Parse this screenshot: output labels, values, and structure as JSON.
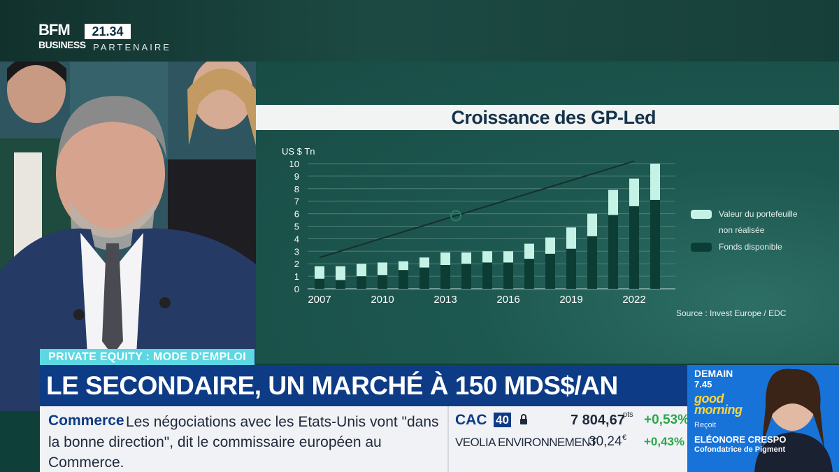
{
  "channel": {
    "logo_top": "BFM",
    "logo_bottom": "BUSINESS",
    "clock": "21.34",
    "partner": "PARTENAIRE"
  },
  "chart_data": {
    "type": "bar",
    "stacked": true,
    "title": "Croissance des GP-Led",
    "unit_label": "US $ Tn",
    "source": "Source : Invest Europe / EDC",
    "ylim": [
      0,
      10
    ],
    "y_ticks": [
      "0",
      "1",
      "2",
      "3",
      "4",
      "5",
      "6",
      "7",
      "8",
      "9",
      "10"
    ],
    "x_tick_labels": [
      "2007",
      "2010",
      "2013",
      "2016",
      "2019",
      "2022"
    ],
    "x": [
      2007,
      2008,
      2009,
      2010,
      2011,
      2012,
      2013,
      2014,
      2015,
      2016,
      2017,
      2018,
      2019,
      2020,
      2021,
      2022,
      2023
    ],
    "series": [
      {
        "name": "Fonds disponible",
        "color": "#0c3d34",
        "values": [
          0.8,
          0.7,
          1.0,
          1.1,
          1.5,
          1.7,
          1.9,
          2.0,
          2.1,
          2.1,
          2.4,
          2.8,
          3.2,
          4.2,
          5.9,
          6.6,
          7.1
        ]
      },
      {
        "name": "Valeur du portefeuille non réalisée",
        "color": "#c4f3e6",
        "values": [
          1.0,
          1.1,
          1.0,
          1.0,
          0.7,
          0.8,
          1.0,
          0.9,
          0.9,
          0.9,
          1.2,
          1.3,
          1.7,
          1.8,
          2.0,
          2.2,
          2.9
        ]
      }
    ],
    "legend": [
      "Valeur du portefeuille",
      "non réalisée",
      "Fonds disponible"
    ],
    "trend_line": {
      "x": [
        2007,
        2022
      ],
      "y": [
        2.5,
        10.2
      ],
      "color": "#17302c"
    },
    "trend_mark_color": "#2f7d6a"
  },
  "banner": {
    "topic": "PRIVATE EQUITY : MODE D'EMPLOI",
    "headline": "LE SECONDAIRE, UN MARCHÉ À 150 MDS$/AN"
  },
  "ticker": {
    "label": "Commerce",
    "text": "Les négociations avec les Etats-Unis vont \"dans la bonne direction\", dit le commissaire européen au Commerce."
  },
  "market": {
    "index_name": "CAC",
    "index_badge": "40",
    "index_value": "7 804,67",
    "index_unit": "pts",
    "index_change": "+0,53%",
    "stock_name": "VEOLIA ENVIRONNEMENT",
    "stock_value": "30,24",
    "stock_unit": "€",
    "stock_change": "+0,43%"
  },
  "promo": {
    "day": "DEMAIN",
    "time": "7.45",
    "show": "good morning",
    "receives": "Reçoit",
    "guest": "ELÉONORE CRESPO",
    "role": "Cofondatrice de Pigment"
  }
}
